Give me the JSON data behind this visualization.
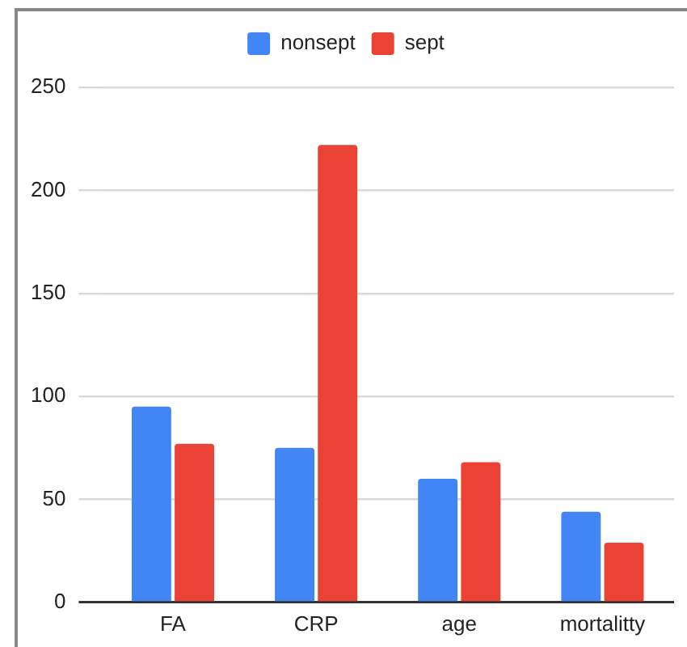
{
  "chart_data": {
    "type": "bar",
    "categories": [
      "FA",
      "CRP",
      "age",
      "mortalitty"
    ],
    "series": [
      {
        "name": "nonsept",
        "color": "#4285f4",
        "values": [
          95,
          75,
          60,
          44
        ]
      },
      {
        "name": "sept",
        "color": "#ea4335",
        "values": [
          77,
          222,
          68,
          29
        ]
      }
    ],
    "ylim": [
      0,
      250
    ],
    "yticks": [
      0,
      50,
      100,
      150,
      200,
      250
    ],
    "grid": "y",
    "legend": "top"
  }
}
